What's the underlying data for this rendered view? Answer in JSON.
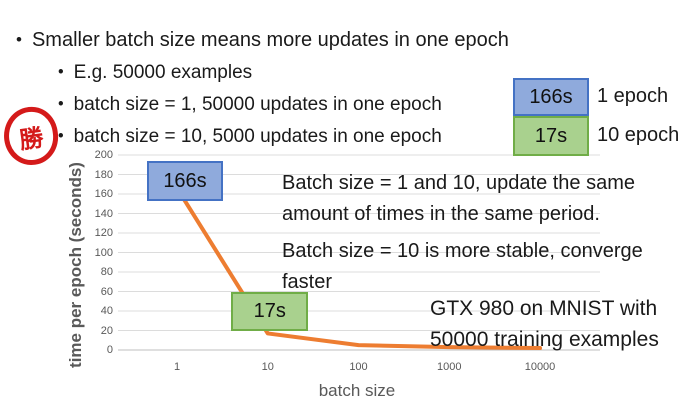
{
  "bullets": {
    "glyph": "•",
    "main": "Smaller batch size means more updates in one epoch",
    "sub": [
      "E.g. 50000 examples",
      "batch size = 1, 50000 updates in one epoch",
      "batch size = 10, 5000 updates in one epoch"
    ]
  },
  "legend": {
    "items": [
      {
        "time": "166s",
        "label": "1 epoch",
        "fill": "#8FAADC",
        "border": "#4472C4"
      },
      {
        "time": "17s",
        "label": "10 epoch",
        "fill": "#A9D18E",
        "border": "#70AD47"
      }
    ]
  },
  "stamp": {
    "char": "勝",
    "color": "#D41A1A"
  },
  "chart_data": {
    "type": "line",
    "x": [
      1,
      10,
      100,
      1000,
      10000
    ],
    "values": [
      166,
      17,
      5,
      3,
      2
    ],
    "x_scale": "log",
    "x_tick_labels": [
      "1",
      "10",
      "100",
      "1000",
      "10000"
    ],
    "xlabel": "batch size",
    "ylabel": "time per epoch (seconds)",
    "ylim": [
      0,
      200
    ],
    "y_tick_step": 20,
    "grid": true,
    "legend_position": "none",
    "line_color": "#ED7D31",
    "gridline_color": "#DCDCDC",
    "axis_line_color": "#BFBFBF",
    "data_labels": [
      {
        "x": 1,
        "text": "166s",
        "fill": "#8FAADC",
        "border": "#4472C4"
      },
      {
        "x": 10,
        "text": "17s",
        "fill": "#A9D18E",
        "border": "#70AD47"
      }
    ],
    "annotations": [
      {
        "lines": [
          "Batch size = 1 and 10, update the same",
          "amount of times in the same period."
        ]
      },
      {
        "lines": [
          "Batch size = 10 is more stable, converge",
          "faster"
        ]
      },
      {
        "lines": [
          "GTX 980 on MNIST with",
          "50000 training examples"
        ]
      }
    ]
  }
}
